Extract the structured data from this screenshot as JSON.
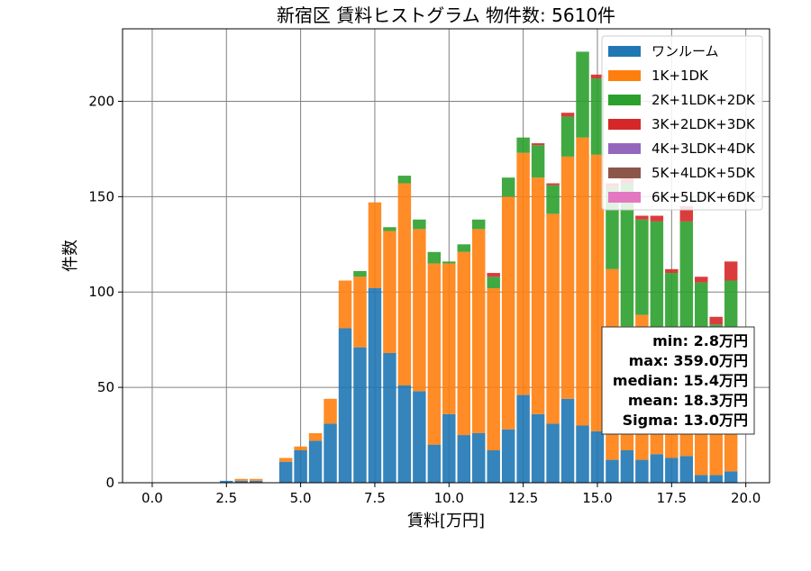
{
  "chart_data": {
    "type": "bar",
    "stacked": true,
    "title": "新宿区 賃料ヒストグラム 物件数: 5610件",
    "xlabel": "賃料[万円]",
    "ylabel": "件数",
    "xlim": [
      -1.0,
      20.8
    ],
    "ylim": [
      0,
      238
    ],
    "grid": true,
    "legend_position": "top-right",
    "bin_width": 0.5,
    "x_ticks": [
      "0.0",
      "2.5",
      "5.0",
      "7.5",
      "10.0",
      "12.5",
      "15.0",
      "17.5",
      "20.0"
    ],
    "y_ticks": [
      "0",
      "50",
      "100",
      "150",
      "200"
    ],
    "bins": [
      2.5,
      3.0,
      3.5,
      4.0,
      4.5,
      5.0,
      5.5,
      6.0,
      6.5,
      7.0,
      7.5,
      8.0,
      8.5,
      9.0,
      9.5,
      10.0,
      10.5,
      11.0,
      11.5,
      12.0,
      12.5,
      13.0,
      13.5,
      14.0,
      14.5,
      15.0,
      15.5,
      16.0,
      16.5,
      17.0,
      17.5,
      18.0,
      18.5,
      19.0,
      19.5
    ],
    "series": [
      {
        "name": "ワンルーム",
        "color": "#1f77b4",
        "values": [
          1,
          1,
          1,
          0,
          11,
          17,
          22,
          31,
          81,
          71,
          102,
          68,
          51,
          48,
          20,
          36,
          25,
          26,
          17,
          28,
          46,
          36,
          31,
          44,
          30,
          27,
          12,
          17,
          12,
          15,
          13,
          14,
          4,
          4,
          6
        ]
      },
      {
        "name": "1K+1DK",
        "color": "#ff7f0e",
        "values": [
          0,
          1,
          1,
          0,
          2,
          2,
          4,
          13,
          25,
          37,
          45,
          64,
          106,
          85,
          95,
          79,
          96,
          107,
          85,
          122,
          127,
          124,
          110,
          127,
          151,
          145,
          100,
          65,
          76,
          60,
          42,
          29,
          28,
          24,
          24
        ]
      },
      {
        "name": "2K+1LDK+2DK",
        "color": "#2ca02c",
        "values": [
          0,
          0,
          0,
          0,
          0,
          0,
          0,
          0,
          0,
          3,
          0,
          2,
          4,
          5,
          6,
          1,
          4,
          5,
          6,
          10,
          8,
          17,
          15,
          21,
          45,
          40,
          43,
          75,
          50,
          62,
          55,
          94,
          73,
          55,
          76
        ]
      },
      {
        "name": "3K+2LDK+3DK",
        "color": "#d62728",
        "values": [
          0,
          0,
          0,
          0,
          0,
          0,
          0,
          0,
          0,
          0,
          0,
          0,
          0,
          0,
          0,
          0,
          0,
          0,
          2,
          0,
          0,
          1,
          1,
          2,
          0,
          2,
          2,
          5,
          2,
          3,
          2,
          8,
          3,
          4,
          10
        ]
      },
      {
        "name": "4K+3LDK+4DK",
        "color": "#9467bd",
        "values": [
          0,
          0,
          0,
          0,
          0,
          0,
          0,
          0,
          0,
          0,
          0,
          0,
          0,
          0,
          0,
          0,
          0,
          0,
          0,
          0,
          0,
          0,
          0,
          0,
          0,
          0,
          0,
          0,
          0,
          0,
          0,
          0,
          0,
          0,
          0
        ]
      },
      {
        "name": "5K+4LDK+5DK",
        "color": "#8c564b",
        "values": [
          0,
          0,
          0,
          0,
          0,
          0,
          0,
          0,
          0,
          0,
          0,
          0,
          0,
          0,
          0,
          0,
          0,
          0,
          0,
          0,
          0,
          0,
          0,
          0,
          0,
          0,
          0,
          0,
          0,
          0,
          0,
          0,
          0,
          0,
          0
        ]
      },
      {
        "name": "6K+5LDK+6DK",
        "color": "#e377c2",
        "values": [
          0,
          0,
          0,
          0,
          0,
          0,
          0,
          0,
          0,
          0,
          0,
          0,
          0,
          0,
          0,
          0,
          0,
          0,
          0,
          0,
          0,
          0,
          0,
          0,
          0,
          0,
          0,
          0,
          0,
          0,
          0,
          0,
          0,
          0,
          0
        ]
      }
    ],
    "stats": {
      "min": "min: 2.8万円",
      "max": "max: 359.0万円",
      "median": "median: 15.4万円",
      "mean": "mean: 18.3万円",
      "sigma": "Sigma: 13.0万円"
    }
  }
}
